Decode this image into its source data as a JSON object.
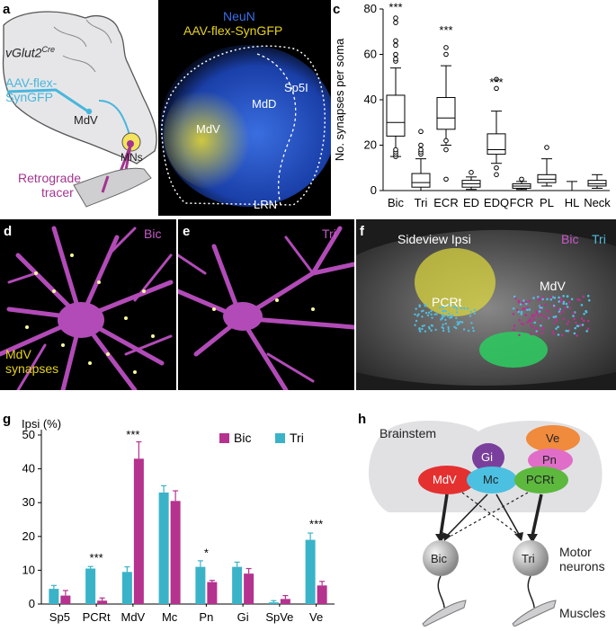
{
  "colors": {
    "bic": "#b5328f",
    "tri": "#3ab3c8",
    "neun": "#2255c8",
    "synGFP": "#e6d21e",
    "retrograde": "#a3358f",
    "tracer_cyan": "#52bde0"
  },
  "panel_labels": {
    "a": "a",
    "b": "b",
    "c": "c",
    "d": "d",
    "e": "e",
    "f": "f",
    "g": "g",
    "h": "h"
  },
  "panel_a": {
    "vglut": "vGlut2",
    "vglut_sup": "Cre",
    "virus_line1": "AAV-flex-",
    "virus_line2": "SynGFP",
    "mdv": "MdV",
    "mns": "MNs",
    "tracer_line1": "Retrograde",
    "tracer_line2": "tracer"
  },
  "panel_b": {
    "neun": "NeuN",
    "syngfp": "AAV-flex-SynGFP",
    "sp5i": "Sp5I",
    "mdd": "MdD",
    "mdv": "MdV",
    "lrn": "LRN"
  },
  "panel_d": {
    "muscle": "Bic",
    "synapses_line1": "MdV",
    "synapses_line2": "synapses"
  },
  "panel_e": {
    "muscle": "Tri"
  },
  "panel_f": {
    "title": "Sideview Ipsi",
    "bic": "Bic",
    "tri": "Tri",
    "pcrt": "PCRt",
    "mdv": "MdV"
  },
  "panel_h": {
    "brainstem": "Brainstem",
    "nodes": {
      "ve": "Ve",
      "gi": "Gi",
      "pn": "Pn",
      "mdv": "MdV",
      "mc": "Mc",
      "pcrt": "PCRt",
      "bic": "Bic",
      "tri": "Tri"
    },
    "motor_line1": "Motor",
    "motor_line2": "neurons",
    "muscles": "Muscles"
  },
  "chart_data": [
    {
      "panel": "c",
      "type": "box",
      "ylabel": "No. synapses per soma",
      "ylim": [
        0,
        80
      ],
      "yticks": [
        0,
        20,
        40,
        60,
        80
      ],
      "categories": [
        "Bic",
        "Tri",
        "ECR",
        "ED",
        "EDQ",
        "FCR",
        "PL",
        "HL",
        "Neck"
      ],
      "boxes": [
        {
          "min": 15,
          "q1": 24,
          "median": 30,
          "q3": 42,
          "max": 54,
          "outliers": [
            15,
            16,
            17,
            18,
            57,
            58,
            60,
            64,
            66,
            74,
            76
          ]
        },
        {
          "min": 0,
          "q1": 1.5,
          "median": 3.5,
          "q3": 7.5,
          "max": 14,
          "outliers": [
            16,
            17,
            18,
            20,
            26
          ]
        },
        {
          "min": 20,
          "q1": 27,
          "median": 32,
          "q3": 41,
          "max": 55,
          "outliers": [
            18,
            22,
            5,
            60,
            63
          ]
        },
        {
          "min": 0.5,
          "q1": 1.5,
          "median": 3,
          "q3": 4.5,
          "max": 6,
          "outliers": [
            8
          ]
        },
        {
          "min": 12,
          "q1": 16,
          "median": 18,
          "q3": 25,
          "max": 35,
          "outliers": [
            7,
            10,
            45,
            49
          ]
        },
        {
          "min": 0.5,
          "q1": 1,
          "median": 2,
          "q3": 3,
          "max": 4,
          "outliers": [
            5
          ]
        },
        {
          "min": 2,
          "q1": 3.5,
          "median": 5,
          "q3": 7,
          "max": 14,
          "outliers": [
            19
          ]
        },
        {
          "min": 0,
          "q1": 0,
          "median": 0,
          "q3": 0,
          "max": 4,
          "outliers": []
        },
        {
          "min": 1,
          "q1": 2,
          "median": 3,
          "q3": 4.5,
          "max": 7,
          "outliers": []
        }
      ],
      "annotations": [
        {
          "category": "Bic",
          "text": "***",
          "y": 79
        },
        {
          "category": "ECR",
          "text": "***",
          "y": 69
        },
        {
          "category": "EDQ",
          "text": "***",
          "y": 46
        }
      ]
    },
    {
      "panel": "g",
      "type": "bar",
      "ylabel": "Ipsi (%)",
      "ylim": [
        0,
        50
      ],
      "yticks": [
        0,
        10,
        20,
        30,
        40,
        50
      ],
      "categories": [
        "Sp5",
        "PCRt",
        "MdV",
        "Mc",
        "Pn",
        "Gi",
        "SpVe",
        "Ve"
      ],
      "series": [
        {
          "name": "Tri",
          "values": [
            4.5,
            10.5,
            9.5,
            33,
            11,
            11,
            0.5,
            19
          ],
          "errors": [
            1,
            0.6,
            1.5,
            2,
            1.8,
            1.4,
            0.5,
            2
          ]
        },
        {
          "name": "Bic",
          "values": [
            2.5,
            1,
            43,
            30.5,
            6.5,
            9,
            1.5,
            5.5
          ],
          "errors": [
            1.5,
            0.8,
            5,
            3,
            0.5,
            1.5,
            1,
            1.2
          ]
        }
      ],
      "annotations": [
        {
          "category": "PCRt",
          "text": "***",
          "y": 12.5
        },
        {
          "category": "MdV",
          "text": "***",
          "y": 49
        },
        {
          "category": "Pn",
          "text": "*",
          "y": 14
        },
        {
          "category": "Ve",
          "text": "***",
          "y": 22.5
        }
      ],
      "legend": {
        "placement": "top-right",
        "entries": [
          "Bic",
          "Tri"
        ]
      }
    }
  ]
}
